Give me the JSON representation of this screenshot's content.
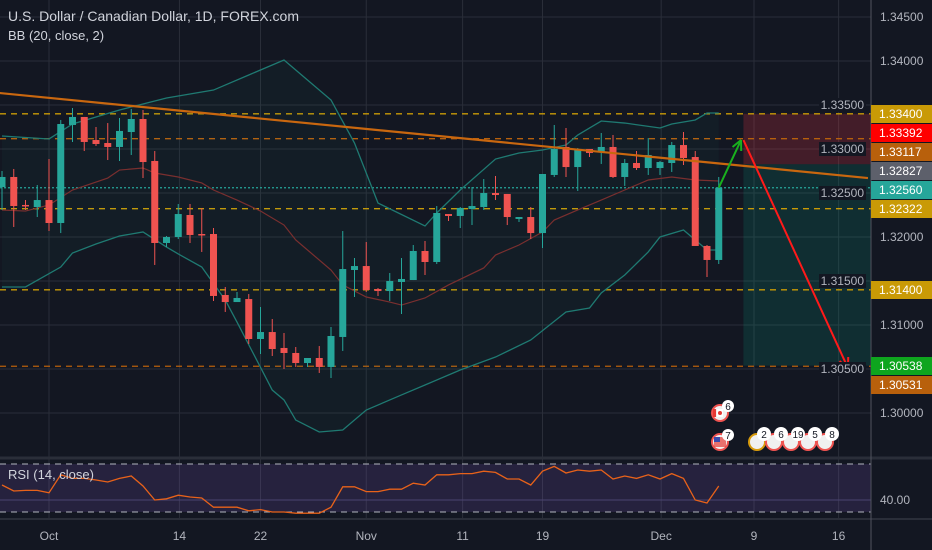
{
  "header": {
    "title": "U.S. Dollar / Canadian Dollar, 1D, FOREX.com",
    "indicator": "BB (20, close, 2)"
  },
  "rsi_pane": {
    "title": "RSI (14, close)",
    "axis_label": "40.00"
  },
  "colors": {
    "up": "#26a69a",
    "down": "#ef5350",
    "bb": "#1f7a72",
    "bb_mid": "#7a2f2f",
    "trend": "#c9670f",
    "rsi": "#e8621a",
    "gold": "#c99a06",
    "brown": "#b8600c"
  },
  "chart_data": {
    "type": "candlestick",
    "title": "U.S. Dollar / Canadian Dollar, 1D, FOREX.com",
    "ylim": [
      1.2965,
      1.347
    ],
    "price_ticks": [
      "1.34500",
      "1.34000",
      "1.33500",
      "1.33000",
      "1.32500",
      "1.32000",
      "1.31500",
      "1.31000",
      "1.30500",
      "1.30000"
    ],
    "time_labels": [
      {
        "label": "Oct",
        "bar": 4
      },
      {
        "label": "14",
        "bar": 15.1
      },
      {
        "label": "22",
        "bar": 22
      },
      {
        "label": "Nov",
        "bar": 31
      },
      {
        "label": "11",
        "bar": 39.2
      },
      {
        "label": "19",
        "bar": 46
      },
      {
        "label": "Dec",
        "bar": 56.1
      },
      {
        "label": "9",
        "bar": 64
      },
      {
        "label": "16",
        "bar": 71.2
      }
    ],
    "ohlc": [
      [
        1.32568,
        1.3275,
        1.32307,
        1.32682
      ],
      [
        1.32682,
        1.32773,
        1.32114,
        1.32352
      ],
      [
        1.32364,
        1.3242,
        1.32307,
        1.32352
      ],
      [
        1.32341,
        1.32591,
        1.32227,
        1.3242
      ],
      [
        1.3242,
        1.32886,
        1.32068,
        1.32159
      ],
      [
        1.32159,
        1.3333,
        1.32045,
        1.33284
      ],
      [
        1.33273,
        1.33466,
        1.3308,
        1.33364
      ],
      [
        1.33364,
        1.33364,
        1.32977,
        1.3308
      ],
      [
        1.33102,
        1.3325,
        1.33034,
        1.33057
      ],
      [
        1.33068,
        1.33295,
        1.32875,
        1.33023
      ],
      [
        1.33023,
        1.33352,
        1.32864,
        1.33205
      ],
      [
        1.33193,
        1.33455,
        1.32932,
        1.33341
      ],
      [
        1.33341,
        1.33443,
        1.3267,
        1.32852
      ],
      [
        1.32864,
        1.32977,
        1.31682,
        1.31932
      ],
      [
        1.31932,
        1.32011,
        1.31886,
        1.32
      ],
      [
        1.32,
        1.32375,
        1.31977,
        1.32261
      ],
      [
        1.3225,
        1.32375,
        1.31932,
        1.32023
      ],
      [
        1.32034,
        1.3233,
        1.3183,
        1.32023
      ],
      [
        1.32034,
        1.32102,
        1.31273,
        1.3133
      ],
      [
        1.31341,
        1.31432,
        1.31148,
        1.31261
      ],
      [
        1.31261,
        1.31375,
        1.31261,
        1.31307
      ],
      [
        1.31295,
        1.31352,
        1.30784,
        1.30841
      ],
      [
        1.30841,
        1.31205,
        1.3067,
        1.3092
      ],
      [
        1.3092,
        1.31068,
        1.30648,
        1.30727
      ],
      [
        1.30739,
        1.30909,
        1.305,
        1.30682
      ],
      [
        1.30682,
        1.3075,
        1.30523,
        1.30568
      ],
      [
        1.30568,
        1.30625,
        1.30523,
        1.30625
      ],
      [
        1.30625,
        1.30761,
        1.30455,
        1.30523
      ],
      [
        1.30523,
        1.30977,
        1.30398,
        1.30875
      ],
      [
        1.30864,
        1.32068,
        1.30705,
        1.31636
      ],
      [
        1.31625,
        1.31761,
        1.31318,
        1.3167
      ],
      [
        1.3167,
        1.31943,
        1.31375,
        1.31398
      ],
      [
        1.31409,
        1.3142,
        1.3133,
        1.31386
      ],
      [
        1.31386,
        1.31591,
        1.31273,
        1.315
      ],
      [
        1.31489,
        1.31761,
        1.31125,
        1.31523
      ],
      [
        1.31511,
        1.31909,
        1.31511,
        1.31841
      ],
      [
        1.31841,
        1.31955,
        1.31568,
        1.31716
      ],
      [
        1.31716,
        1.32352,
        1.31693,
        1.32273
      ],
      [
        1.32261,
        1.32261,
        1.32182,
        1.32239
      ],
      [
        1.32239,
        1.32341,
        1.32102,
        1.3233
      ],
      [
        1.32318,
        1.32568,
        1.32136,
        1.32352
      ],
      [
        1.32341,
        1.32659,
        1.32307,
        1.325
      ],
      [
        1.325,
        1.32693,
        1.3242,
        1.32477
      ],
      [
        1.32489,
        1.32489,
        1.32136,
        1.32227
      ],
      [
        1.32205,
        1.32227,
        1.3217,
        1.32227
      ],
      [
        1.32227,
        1.32341,
        1.31977,
        1.32045
      ],
      [
        1.32045,
        1.32716,
        1.31875,
        1.32716
      ],
      [
        1.32705,
        1.33273,
        1.32682,
        1.33
      ],
      [
        1.33023,
        1.33239,
        1.32682,
        1.32795
      ],
      [
        1.32795,
        1.33011,
        1.32523,
        1.33
      ],
      [
        1.33,
        1.33,
        1.32909,
        1.32955
      ],
      [
        1.32966,
        1.33182,
        1.3283,
        1.33023
      ],
      [
        1.33023,
        1.33159,
        1.3267,
        1.32682
      ],
      [
        1.32682,
        1.32886,
        1.3258,
        1.32841
      ],
      [
        1.32841,
        1.32977,
        1.32761,
        1.32784
      ],
      [
        1.32784,
        1.33125,
        1.32705,
        1.32932
      ],
      [
        1.32784,
        1.32864,
        1.32705,
        1.32852
      ],
      [
        1.32841,
        1.3308,
        1.32739,
        1.33045
      ],
      [
        1.33045,
        1.33193,
        1.32818,
        1.32898
      ],
      [
        1.32909,
        1.32977,
        1.31898,
        1.31898
      ],
      [
        1.31898,
        1.31909,
        1.31545,
        1.31739
      ],
      [
        1.31739,
        1.32682,
        1.31693,
        1.3256
      ]
    ],
    "bb_upper": [
      [
        0,
        1.33148
      ],
      [
        4,
        1.33114
      ],
      [
        6,
        1.33284
      ],
      [
        10,
        1.33443
      ],
      [
        14,
        1.3358
      ],
      [
        18,
        1.3367
      ],
      [
        21,
        1.33841
      ],
      [
        24,
        1.34011
      ],
      [
        28,
        1.33557
      ],
      [
        30,
        1.33068
      ],
      [
        32,
        1.32386
      ],
      [
        36,
        1.32125
      ],
      [
        37,
        1.32273
      ],
      [
        39,
        1.32534
      ],
      [
        42,
        1.32886
      ],
      [
        44,
        1.32955
      ],
      [
        46,
        1.32989
      ],
      [
        48,
        1.33045
      ],
      [
        49,
        1.33159
      ],
      [
        51,
        1.33318
      ],
      [
        53,
        1.33295
      ],
      [
        56,
        1.33239
      ],
      [
        57,
        1.33284
      ],
      [
        59,
        1.3333
      ],
      [
        60,
        1.33409
      ],
      [
        61,
        1.33409
      ]
    ],
    "bb_basis": [
      [
        0,
        1.32307
      ],
      [
        2,
        1.32295
      ],
      [
        4,
        1.32364
      ],
      [
        6,
        1.32534
      ],
      [
        9,
        1.3267
      ],
      [
        10,
        1.32761
      ],
      [
        12,
        1.32784
      ],
      [
        13,
        1.32727
      ],
      [
        15,
        1.32682
      ],
      [
        17,
        1.32614
      ],
      [
        18,
        1.32534
      ],
      [
        20,
        1.3242
      ],
      [
        22,
        1.32295
      ],
      [
        24,
        1.32136
      ],
      [
        25,
        1.31966
      ],
      [
        28,
        1.31625
      ],
      [
        29,
        1.31455
      ],
      [
        31,
        1.31318
      ],
      [
        33,
        1.31261
      ],
      [
        34,
        1.31227
      ],
      [
        36,
        1.31307
      ],
      [
        38,
        1.31455
      ],
      [
        41,
        1.31648
      ],
      [
        42,
        1.31795
      ],
      [
        44,
        1.31909
      ],
      [
        46,
        1.32057
      ],
      [
        47,
        1.32193
      ],
      [
        49,
        1.32307
      ],
      [
        51,
        1.3242
      ],
      [
        53,
        1.32534
      ],
      [
        55,
        1.32648
      ],
      [
        57,
        1.32682
      ],
      [
        59,
        1.32648
      ],
      [
        61,
        1.32636
      ]
    ],
    "bb_lower": [
      [
        0,
        1.31432
      ],
      [
        2,
        1.31432
      ],
      [
        5,
        1.31659
      ],
      [
        6,
        1.31818
      ],
      [
        8,
        1.3192
      ],
      [
        10,
        1.32011
      ],
      [
        12,
        1.32057
      ],
      [
        14,
        1.31886
      ],
      [
        15,
        1.31807
      ],
      [
        17,
        1.31659
      ],
      [
        19,
        1.31284
      ],
      [
        20,
        1.31034
      ],
      [
        23,
        1.30261
      ],
      [
        24,
        1.30148
      ],
      [
        25,
        1.2992
      ],
      [
        27,
        1.29784
      ],
      [
        29,
        1.29807
      ],
      [
        31,
        1.30034
      ],
      [
        34,
        1.30205
      ],
      [
        36,
        1.30318
      ],
      [
        39,
        1.30489
      ],
      [
        42,
        1.30636
      ],
      [
        45,
        1.3083
      ],
      [
        48,
        1.31148
      ],
      [
        50,
        1.31193
      ],
      [
        51,
        1.31364
      ],
      [
        53,
        1.31568
      ],
      [
        55,
        1.3183
      ],
      [
        56,
        1.32
      ],
      [
        58,
        1.3208
      ],
      [
        60,
        1.31852
      ],
      [
        61,
        1.31852
      ]
    ],
    "trendline": [
      [
        -0.2,
        1.33636
      ],
      [
        73.7,
        1.3267
      ]
    ],
    "hlines": [
      {
        "price": 1.334,
        "style": "gold"
      },
      {
        "price": 1.33117,
        "style": "brown"
      },
      {
        "price": 1.32322,
        "style": "gold"
      },
      {
        "price": 1.314,
        "style": "gold"
      },
      {
        "price": 1.30531,
        "style": "brown"
      },
      {
        "price": 1.3256,
        "style": "current"
      }
    ],
    "short_position": {
      "start_bar": 63.1,
      "stop": 1.334,
      "entry": 1.32827,
      "target": 1.30538
    },
    "arrows": [
      {
        "from": [
          61,
          1.3256
        ],
        "to": [
          62.9,
          1.33102
        ],
        "color": "#19b01e"
      },
      {
        "from": [
          63.1,
          1.33102
        ],
        "to": [
          72,
          1.30511
        ],
        "color": "#ff1a1a"
      }
    ],
    "price_labels": [
      {
        "text": "1.33400",
        "price": 1.334,
        "color": "#c99a06"
      },
      {
        "text": "1.33392",
        "price": 1.33392,
        "color": "#ff0000"
      },
      {
        "text": "1.33117",
        "price": 1.33117,
        "color": "#b8600c"
      },
      {
        "text": "1.32827",
        "price": 1.32827,
        "color": "#5d606b"
      },
      {
        "text": "1.32560",
        "price": 1.3256,
        "color": "#26a69a"
      },
      {
        "text": "1.32322",
        "price": 1.32322,
        "color": "#c99a06"
      },
      {
        "text": "1.31400",
        "price": 1.314,
        "color": "#c99a06"
      },
      {
        "text": "1.30538",
        "price": 1.30538,
        "color": "#0ea51e"
      },
      {
        "text": "1.30531",
        "price": 1.30531,
        "color": "#b8600c"
      }
    ],
    "rsi": {
      "upper_band": 70,
      "lower_band": 30,
      "values": [
        52.5,
        47.5,
        48,
        48,
        46,
        61,
        58,
        58,
        56.7,
        55,
        58,
        60,
        51.7,
        40,
        41,
        44,
        42.5,
        41.7,
        34,
        34,
        34,
        31,
        32,
        30,
        30,
        29,
        29,
        29,
        34,
        51,
        51,
        47,
        47,
        49,
        49,
        54,
        52.5,
        61,
        61,
        62,
        62,
        64,
        63,
        57.5,
        57.5,
        52.5,
        64,
        68,
        62.5,
        65,
        64,
        65,
        57.5,
        60,
        58,
        61,
        57.5,
        62,
        58,
        40,
        37.5,
        51.7
      ]
    },
    "events": {
      "canada": {
        "count": "6"
      },
      "us": {
        "count": "7"
      },
      "group": [
        "2",
        "6",
        "19",
        "5",
        "8"
      ]
    }
  }
}
